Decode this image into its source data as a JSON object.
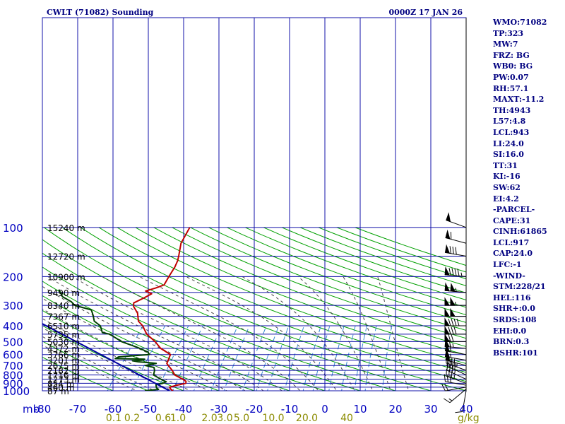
{
  "title_left": "CWLT (71082) Sounding",
  "title_right": "0000Z 17 JAN 26",
  "colors": {
    "grid": "#1010a8",
    "dry_adiabat": "#00a000",
    "moist_adiabat": "#444444",
    "mixing_ratio": "#3a8ad0",
    "temperature": "#c00000",
    "dewpoint": "#004000",
    "parcel": "#0000a0",
    "wind": "#000000",
    "index_text": "#000080"
  },
  "indices": [
    "WMO:71082",
    "TP:323",
    "MW:7",
    "FRZ: BG",
    "WB0: BG",
    "PW:0.07",
    "RH:57.1",
    "MAXT:-11.2",
    "TH:4943",
    "L57:4.8",
    "LCL:943",
    "LI:24.0",
    "SI:16.0",
    "TT:31",
    "KI:-16",
    "SW:62",
    "EI:4.2",
    "-PARCEL-",
    "CAPE:31",
    "CINH:61865",
    "LCL:917",
    "CAP:24.0",
    "LFC:-1",
    "-WIND-",
    "STM:228/21",
    "HEL:116",
    "SHR+:0.0",
    "SRDS:108",
    "EHI:0.0",
    "BRN:0.3",
    "BSHR:101"
  ],
  "chart_data": {
    "type": "line",
    "xlabel": "",
    "ylabel": "mb",
    "pressure_unit_label": "mb",
    "mixing_ratio_unit_label": "g/kg",
    "x_ticks": [
      "-80",
      "-70",
      "-60",
      "-50",
      "-40",
      "-30",
      "-20",
      "-10",
      "0",
      "10",
      "20",
      "30",
      "40"
    ],
    "y_ticks": [
      "100",
      "200",
      "300",
      "400",
      "500",
      "600",
      "700",
      "800",
      "900",
      "1000"
    ],
    "height_labels": [
      {
        "p": 100,
        "label": "15240 m"
      },
      {
        "p": 150,
        "label": "12720 m"
      },
      {
        "p": 200,
        "label": "10900 m"
      },
      {
        "p": 250,
        "label": "9490 m"
      },
      {
        "p": 300,
        "label": "8340 m"
      },
      {
        "p": 350,
        "label": "7367 m"
      },
      {
        "p": 400,
        "label": "6510 m"
      },
      {
        "p": 450,
        "label": "5735 m"
      },
      {
        "p": 500,
        "label": "5030 m"
      },
      {
        "p": 550,
        "label": "4372 m"
      },
      {
        "p": 600,
        "label": "3766 m"
      },
      {
        "p": 650,
        "label": "3201 m"
      },
      {
        "p": 700,
        "label": "2675 m"
      },
      {
        "p": 750,
        "label": "2182 m"
      },
      {
        "p": 800,
        "label": "1716 m"
      },
      {
        "p": 850,
        "label": "1273 m"
      },
      {
        "p": 900,
        "label": "854 m"
      },
      {
        "p": 950,
        "label": "460 m"
      },
      {
        "p": 1000,
        "label": "87 m"
      }
    ],
    "mixing_ratio_labels": [
      {
        "x": -39.8,
        "label": "0.1"
      },
      {
        "x": -34.6,
        "label": "0.2"
      },
      {
        "x": -25.8,
        "label": "0.6"
      },
      {
        "x": -21.6,
        "label": "1.0"
      },
      {
        "x": -12.7,
        "label": "2.0"
      },
      {
        "x": -8.3,
        "label": "3.0"
      },
      {
        "x": -3.6,
        "label": "5.0"
      },
      {
        "x": 5.4,
        "label": "10.0"
      },
      {
        "x": 14.9,
        "label": "20.0"
      },
      {
        "x": 26.2,
        "label": "40"
      }
    ],
    "series": [
      {
        "key": "temperature",
        "points": [
          {
            "p": 100,
            "t": -64.5
          },
          {
            "p": 125,
            "t": -62.5
          },
          {
            "p": 150,
            "t": -59.5
          },
          {
            "p": 160,
            "t": -58.5
          },
          {
            "p": 175,
            "t": -57.5
          },
          {
            "p": 200,
            "t": -56.5
          },
          {
            "p": 225,
            "t": -55.5
          },
          {
            "p": 235,
            "t": -57
          },
          {
            "p": 245,
            "t": -59
          },
          {
            "p": 255,
            "t": -56.5
          },
          {
            "p": 270,
            "t": -57.5
          },
          {
            "p": 290,
            "t": -59
          },
          {
            "p": 305,
            "t": -58
          },
          {
            "p": 335,
            "t": -55
          },
          {
            "p": 375,
            "t": -52.5
          },
          {
            "p": 400,
            "t": -50
          },
          {
            "p": 450,
            "t": -46.5
          },
          {
            "p": 500,
            "t": -42
          },
          {
            "p": 550,
            "t": -38.5
          },
          {
            "p": 600,
            "t": -34
          },
          {
            "p": 625,
            "t": -33.5
          },
          {
            "p": 650,
            "t": -33
          },
          {
            "p": 680,
            "t": -32.5
          },
          {
            "p": 700,
            "t": -31.5
          },
          {
            "p": 750,
            "t": -29
          },
          {
            "p": 800,
            "t": -27
          },
          {
            "p": 850,
            "t": -23.5
          },
          {
            "p": 875,
            "t": -22
          },
          {
            "p": 900,
            "t": -21.5
          },
          {
            "p": 925,
            "t": -23.5
          },
          {
            "p": 950,
            "t": -25
          },
          {
            "p": 980,
            "t": -24
          },
          {
            "p": 1000,
            "t": -23
          }
        ]
      },
      {
        "key": "dewpoint",
        "points": [
          {
            "p": 240,
            "t": -84
          },
          {
            "p": 265,
            "t": -81
          },
          {
            "p": 285,
            "t": -77
          },
          {
            "p": 300,
            "t": -75
          },
          {
            "p": 320,
            "t": -69
          },
          {
            "p": 345,
            "t": -67
          },
          {
            "p": 375,
            "t": -65
          },
          {
            "p": 400,
            "t": -62
          },
          {
            "p": 440,
            "t": -59.5
          },
          {
            "p": 450,
            "t": -57
          },
          {
            "p": 500,
            "t": -51.5
          },
          {
            "p": 545,
            "t": -45
          },
          {
            "p": 580,
            "t": -41
          },
          {
            "p": 600,
            "t": -40
          },
          {
            "p": 620,
            "t": -48
          },
          {
            "p": 635,
            "t": -48.5
          },
          {
            "p": 640,
            "t": -40
          },
          {
            "p": 650,
            "t": -40.5
          },
          {
            "p": 655,
            "t": -43
          },
          {
            "p": 665,
            "t": -41
          },
          {
            "p": 675,
            "t": -37
          },
          {
            "p": 680,
            "t": -35.5
          },
          {
            "p": 700,
            "t": -38
          },
          {
            "p": 720,
            "t": -35
          },
          {
            "p": 750,
            "t": -34
          },
          {
            "p": 800,
            "t": -33
          },
          {
            "p": 830,
            "t": -31
          },
          {
            "p": 860,
            "t": -29
          },
          {
            "p": 880,
            "t": -27.5
          },
          {
            "p": 900,
            "t": -28
          },
          {
            "p": 920,
            "t": -29.5
          },
          {
            "p": 940,
            "t": -29
          },
          {
            "p": 960,
            "t": -28.5
          },
          {
            "p": 980,
            "t": -27.5
          },
          {
            "p": 1000,
            "t": -31
          }
        ]
      },
      {
        "key": "parcel",
        "points": [
          {
            "p": 382,
            "t": -80
          },
          {
            "p": 1000,
            "t": -24
          }
        ]
      }
    ],
    "winds": [
      {
        "p": 1000,
        "dir": 190,
        "spd": 10
      },
      {
        "p": 975,
        "dir": 230,
        "spd": 15
      },
      {
        "p": 950,
        "dir": 260,
        "spd": 20
      },
      {
        "p": 925,
        "dir": 280,
        "spd": 30
      },
      {
        "p": 900,
        "dir": 290,
        "spd": 35
      },
      {
        "p": 850,
        "dir": 295,
        "spd": 35
      },
      {
        "p": 800,
        "dir": 295,
        "spd": 40
      },
      {
        "p": 750,
        "dir": 290,
        "spd": 45
      },
      {
        "p": 700,
        "dir": 285,
        "spd": 50
      },
      {
        "p": 650,
        "dir": 280,
        "spd": 55
      },
      {
        "p": 600,
        "dir": 280,
        "spd": 60
      },
      {
        "p": 550,
        "dir": 275,
        "spd": 65
      },
      {
        "p": 500,
        "dir": 270,
        "spd": 70
      },
      {
        "p": 450,
        "dir": 270,
        "spd": 80
      },
      {
        "p": 400,
        "dir": 270,
        "spd": 90
      },
      {
        "p": 350,
        "dir": 270,
        "spd": 100
      },
      {
        "p": 300,
        "dir": 270,
        "spd": 105
      },
      {
        "p": 250,
        "dir": 275,
        "spd": 105
      },
      {
        "p": 200,
        "dir": 275,
        "spd": 95
      },
      {
        "p": 150,
        "dir": 280,
        "spd": 80
      },
      {
        "p": 125,
        "dir": 285,
        "spd": 60
      },
      {
        "p": 100,
        "dir": 290,
        "spd": 50
      }
    ]
  }
}
